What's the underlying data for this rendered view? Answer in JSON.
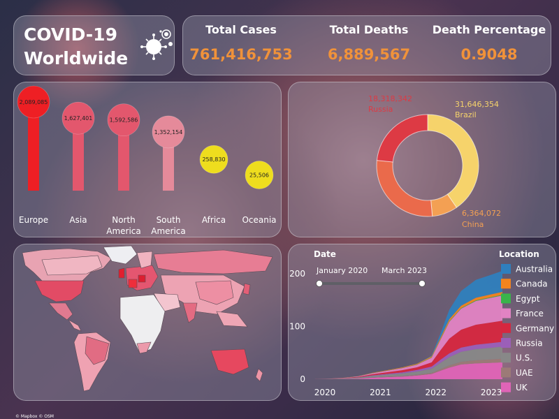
{
  "title": {
    "line1": "COVID-19",
    "line2": "Worldwide",
    "icon": "virus-icon"
  },
  "kpis": [
    {
      "label": "Total Cases",
      "value": "761,416,753"
    },
    {
      "label": "Total Deaths",
      "value": "6,889,567"
    },
    {
      "label": "Death Percentage",
      "value": "0.9048"
    }
  ],
  "colors": {
    "kpi_value": "#f0923a",
    "bar_red": "#ee1f24",
    "bar_pink": "#e3576d",
    "bar_light": "#e58a9a",
    "bar_yellow": "#eedd1e"
  },
  "chart_data": [
    {
      "type": "bar",
      "categories": [
        "Europe",
        "Asia",
        "North America",
        "South America",
        "Africa",
        "Oceania"
      ],
      "values": [
        2089085,
        1627401,
        1592586,
        1352154,
        258830,
        25506
      ],
      "data_labels": [
        "2,089,085",
        "1,627,401",
        "1,592,586",
        "1,352,154",
        "258,830",
        "25,506"
      ],
      "colors": [
        "#ee1f24",
        "#e3576d",
        "#e3576d",
        "#e58a9a",
        "#eedd1e",
        "#eedd1e"
      ]
    },
    {
      "type": "pie",
      "donut": true,
      "slices": [
        {
          "label": "Brazil",
          "value_label": "31,646,354",
          "value": 31646354,
          "color": "#f6d36b"
        },
        {
          "label": "China",
          "value_label": "6,364,072",
          "value": 6364072,
          "color": "#f3a053"
        },
        {
          "label": "",
          "value_label": "",
          "value": 22000000,
          "color": "#ea6a4b"
        },
        {
          "label": "Russia",
          "value_label": "18,318,342",
          "value": 18318342,
          "color": "#dd3a44"
        }
      ]
    },
    {
      "type": "area",
      "stacked": true,
      "x": [
        2020.0,
        2020.25,
        2020.5,
        2020.75,
        2021.0,
        2021.25,
        2021.5,
        2021.75,
        2022.0,
        2022.15,
        2022.3,
        2022.5,
        2022.75,
        2023.0,
        2023.2
      ],
      "xticks": [
        "2020",
        "2021",
        "2022",
        "2023"
      ],
      "xtick_values": [
        2020,
        2021,
        2022,
        2023
      ],
      "yticks": [
        "0",
        "100",
        "200"
      ],
      "ytick_values": [
        0,
        100,
        200
      ],
      "ylim": [
        0,
        240
      ],
      "filter": {
        "title": "Date",
        "start": "January 2020",
        "end": "March 2023"
      },
      "legend_title": "Location",
      "series": [
        {
          "name": "UK",
          "color": "#e064b7",
          "values": [
            0,
            0.2,
            0.5,
            1,
            3,
            4,
            5,
            7,
            10,
            16,
            22,
            28,
            30,
            31,
            32
          ]
        },
        {
          "name": "UAE",
          "color": "#9c7a77",
          "values": [
            0,
            0,
            0.1,
            0.2,
            0.5,
            0.8,
            1,
            1.5,
            2,
            3,
            4,
            5,
            6,
            6.5,
            7
          ]
        },
        {
          "name": "U.S.",
          "color": "#888888",
          "values": [
            0,
            0.5,
            1,
            2,
            3,
            4,
            5,
            6,
            8,
            12,
            16,
            19,
            21,
            22,
            23
          ]
        },
        {
          "name": "Russia",
          "color": "#9b5fb8",
          "values": [
            0,
            0,
            0.1,
            0.3,
            1,
            1.5,
            2,
            3,
            4,
            6,
            7,
            8,
            8.5,
            9,
            9
          ]
        },
        {
          "name": "Germany",
          "color": "#d6273f",
          "values": [
            0,
            0.1,
            0.3,
            1,
            2,
            3,
            4,
            5,
            8,
            18,
            28,
            34,
            38,
            39,
            40
          ]
        },
        {
          "name": "France",
          "color": "#e183c3",
          "values": [
            0,
            0.2,
            0.5,
            1,
            2,
            3,
            4,
            5,
            9,
            20,
            32,
            40,
            45,
            47,
            48
          ]
        },
        {
          "name": "Egypt",
          "color": "#3ab44a",
          "values": [
            0,
            0,
            0,
            0.1,
            0.2,
            0.3,
            0.4,
            0.5,
            0.6,
            0.8,
            1,
            1,
            1.1,
            1.2,
            1.2
          ]
        },
        {
          "name": "Canada",
          "color": "#f2841e",
          "values": [
            0,
            0,
            0.1,
            0.2,
            0.5,
            0.7,
            1,
            1.3,
            2,
            3,
            4,
            4.5,
            5,
            5.2,
            5.5
          ]
        },
        {
          "name": "Australia",
          "color": "#2f7fbd",
          "values": [
            0,
            0,
            0,
            0,
            0,
            0,
            0,
            0.2,
            1,
            8,
            18,
            28,
            34,
            37,
            40
          ]
        }
      ]
    }
  ],
  "footer": "© Mapbox © OSM"
}
